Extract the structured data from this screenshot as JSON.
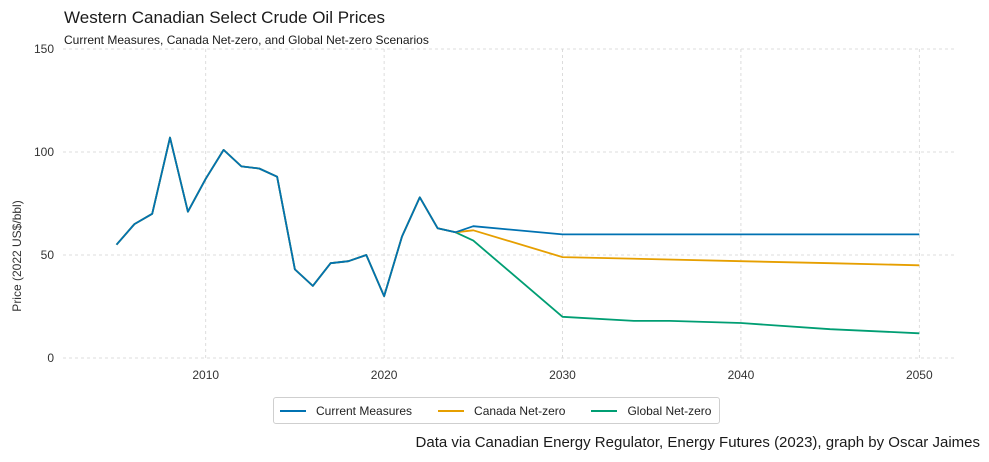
{
  "title": "Western Canadian Select Crude Oil Prices",
  "subtitle": "Current Measures, Canada Net-zero, and Global Net-zero Scenarios",
  "source": "Data via Canadian Energy Regulator, Energy Futures (2023), graph by Oscar Jaimes",
  "chart_data": {
    "type": "line",
    "title": "Western Canadian Select Crude Oil Prices",
    "subtitle": "Current Measures, Canada Net-zero, and Global Net-zero Scenarios",
    "xlabel": "",
    "ylabel": "Price (2022 US$/bbl)",
    "xlim": [
      2002,
      2052
    ],
    "ylim": [
      0,
      150
    ],
    "xticks": [
      2010,
      2020,
      2030,
      2040,
      2050
    ],
    "yticks": [
      0,
      50,
      100,
      150
    ],
    "grid": true,
    "legend_position": "bottom-center",
    "series": [
      {
        "name": "Current Measures",
        "color": "#0072b2",
        "x": [
          2005,
          2006,
          2007,
          2008,
          2009,
          2010,
          2011,
          2012,
          2013,
          2014,
          2015,
          2016,
          2017,
          2018,
          2019,
          2020,
          2021,
          2022,
          2023,
          2024,
          2025,
          2030,
          2035,
          2040,
          2045,
          2050
        ],
        "y": [
          55,
          65,
          70,
          107,
          71,
          87,
          101,
          93,
          92,
          88,
          43,
          35,
          46,
          47,
          50,
          30,
          59,
          78,
          63,
          61,
          64,
          60,
          60,
          60,
          60,
          60
        ]
      },
      {
        "name": "Canada Net-zero",
        "color": "#e69f00",
        "x": [
          2005,
          2006,
          2007,
          2008,
          2009,
          2010,
          2011,
          2012,
          2013,
          2014,
          2015,
          2016,
          2017,
          2018,
          2019,
          2020,
          2021,
          2022,
          2023,
          2024,
          2025,
          2030,
          2035,
          2040,
          2045,
          2050
        ],
        "y": [
          55,
          65,
          70,
          107,
          71,
          87,
          101,
          93,
          92,
          88,
          43,
          35,
          46,
          47,
          50,
          30,
          59,
          78,
          63,
          61,
          62,
          49,
          48,
          47,
          46,
          45
        ]
      },
      {
        "name": "Global Net-zero",
        "color": "#009e73",
        "x": [
          2005,
          2006,
          2007,
          2008,
          2009,
          2010,
          2011,
          2012,
          2013,
          2014,
          2015,
          2016,
          2017,
          2018,
          2019,
          2020,
          2021,
          2022,
          2023,
          2024,
          2025,
          2030,
          2034,
          2036,
          2040,
          2045,
          2050
        ],
        "y": [
          55,
          65,
          70,
          107,
          71,
          87,
          101,
          93,
          92,
          88,
          43,
          35,
          46,
          47,
          50,
          30,
          59,
          78,
          63,
          61,
          57,
          20,
          18,
          18,
          17,
          14,
          12
        ]
      }
    ]
  }
}
